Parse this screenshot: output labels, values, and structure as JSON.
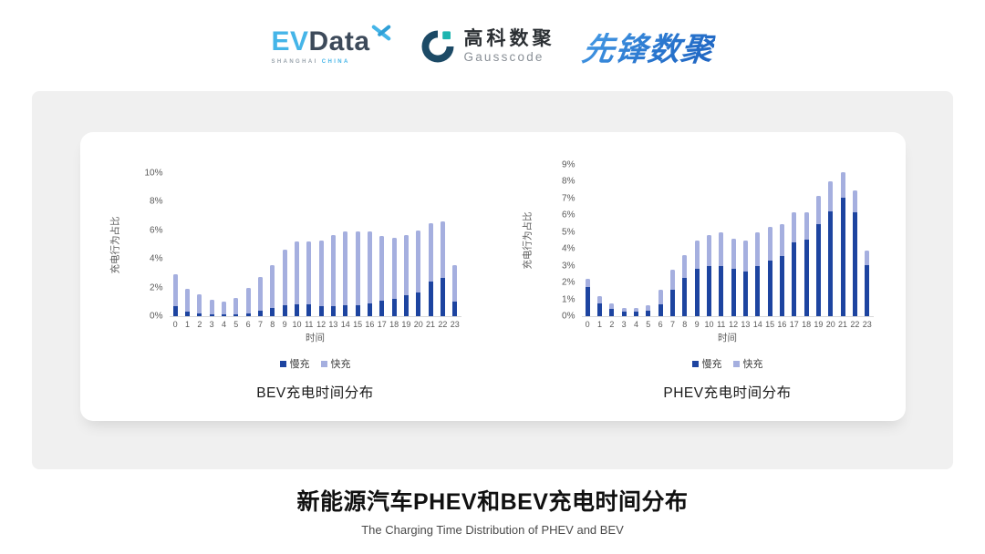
{
  "header": {
    "evdata": {
      "ev": "EV",
      "data": "Data",
      "sub_left": "SHANGHAI",
      "sub_right": "CHINA"
    },
    "gausscode": {
      "cn": "高科数聚",
      "en": "Gausscode"
    },
    "xianfeng": {
      "text": "先锋数聚"
    }
  },
  "colors": {
    "slow": "#1d44a0",
    "fast": "#a5afdf",
    "panel": "#f0f0f0",
    "axis_text": "#595959",
    "brand_blue": "#2a77cf"
  },
  "chart_data": [
    {
      "type": "bar",
      "stacked": true,
      "title": "BEV充电时间分布",
      "xlabel": "时间",
      "ylabel": "充电行为占比",
      "categories": [
        0,
        1,
        2,
        3,
        4,
        5,
        6,
        7,
        8,
        9,
        10,
        11,
        12,
        13,
        14,
        15,
        16,
        17,
        18,
        19,
        20,
        21,
        22,
        23
      ],
      "series": [
        {
          "name": "慢充",
          "values": [
            0.7,
            0.35,
            0.2,
            0.1,
            0.1,
            0.1,
            0.2,
            0.4,
            0.55,
            0.75,
            0.8,
            0.8,
            0.7,
            0.7,
            0.75,
            0.75,
            0.9,
            1.1,
            1.2,
            1.45,
            1.65,
            2.4,
            2.7,
            1.0
          ]
        },
        {
          "name": "快充",
          "values": [
            2.2,
            1.55,
            1.3,
            1.05,
            0.95,
            1.15,
            1.75,
            2.35,
            3.0,
            3.9,
            4.4,
            4.45,
            4.6,
            5.0,
            5.15,
            5.15,
            5.0,
            4.5,
            4.25,
            4.2,
            4.35,
            4.1,
            3.9,
            2.6
          ]
        }
      ],
      "ylim": [
        0,
        10
      ],
      "ytick_step": 2,
      "ytick_suffix": "%",
      "grid": false,
      "legend_position": "bottom"
    },
    {
      "type": "bar",
      "stacked": true,
      "title": "PHEV充电时间分布",
      "xlabel": "时间",
      "ylabel": "充电行为占比",
      "categories": [
        0,
        1,
        2,
        3,
        4,
        5,
        6,
        7,
        8,
        9,
        10,
        11,
        12,
        13,
        14,
        15,
        16,
        17,
        18,
        19,
        20,
        21,
        22,
        23
      ],
      "series": [
        {
          "name": "慢充",
          "values": [
            1.75,
            0.75,
            0.45,
            0.25,
            0.25,
            0.3,
            0.7,
            1.6,
            2.3,
            2.8,
            3.0,
            3.0,
            2.8,
            2.65,
            3.0,
            3.3,
            3.6,
            4.4,
            4.55,
            5.45,
            6.25,
            7.05,
            6.2,
            3.05
          ]
        },
        {
          "name": "快充",
          "values": [
            0.45,
            0.45,
            0.3,
            0.25,
            0.25,
            0.35,
            0.9,
            1.15,
            1.35,
            1.7,
            1.8,
            2.0,
            1.8,
            1.85,
            2.0,
            2.0,
            1.9,
            1.8,
            1.65,
            1.7,
            1.75,
            1.5,
            1.3,
            0.85
          ]
        }
      ],
      "ylim": [
        0,
        9
      ],
      "ytick_step": 1,
      "ytick_suffix": "%",
      "grid": false,
      "legend_position": "bottom"
    }
  ],
  "footer": {
    "title": "新能源汽车PHEV和BEV充电时间分布",
    "subtitle": "The Charging Time Distribution of PHEV and BEV"
  }
}
